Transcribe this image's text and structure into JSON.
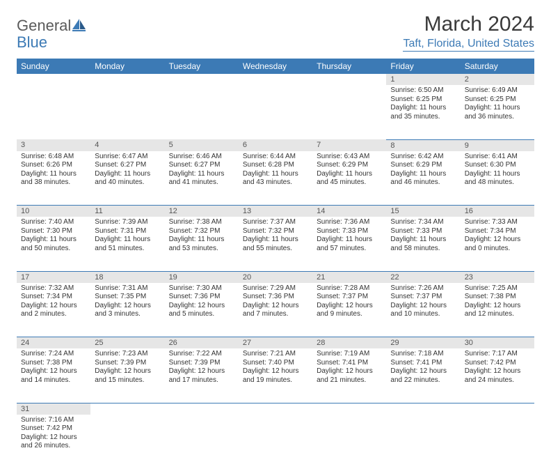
{
  "logo": {
    "text_general": "General",
    "text_blue": "Blue"
  },
  "title": "March 2024",
  "location": "Taft, Florida, United States",
  "day_headers": [
    "Sunday",
    "Monday",
    "Tuesday",
    "Wednesday",
    "Thursday",
    "Friday",
    "Saturday"
  ],
  "colors": {
    "header_bg": "#3c7ab5",
    "header_text": "#ffffff",
    "daynum_bg": "#e6e6e6",
    "border": "#3c7ab5",
    "link": "#3c7ab5"
  },
  "weeks": [
    [
      null,
      null,
      null,
      null,
      null,
      {
        "n": "1",
        "sr": "6:50 AM",
        "ss": "6:25 PM",
        "dl": "11 hours and 35 minutes."
      },
      {
        "n": "2",
        "sr": "6:49 AM",
        "ss": "6:25 PM",
        "dl": "11 hours and 36 minutes."
      }
    ],
    [
      {
        "n": "3",
        "sr": "6:48 AM",
        "ss": "6:26 PM",
        "dl": "11 hours and 38 minutes."
      },
      {
        "n": "4",
        "sr": "6:47 AM",
        "ss": "6:27 PM",
        "dl": "11 hours and 40 minutes."
      },
      {
        "n": "5",
        "sr": "6:46 AM",
        "ss": "6:27 PM",
        "dl": "11 hours and 41 minutes."
      },
      {
        "n": "6",
        "sr": "6:44 AM",
        "ss": "6:28 PM",
        "dl": "11 hours and 43 minutes."
      },
      {
        "n": "7",
        "sr": "6:43 AM",
        "ss": "6:29 PM",
        "dl": "11 hours and 45 minutes."
      },
      {
        "n": "8",
        "sr": "6:42 AM",
        "ss": "6:29 PM",
        "dl": "11 hours and 46 minutes."
      },
      {
        "n": "9",
        "sr": "6:41 AM",
        "ss": "6:30 PM",
        "dl": "11 hours and 48 minutes."
      }
    ],
    [
      {
        "n": "10",
        "sr": "7:40 AM",
        "ss": "7:30 PM",
        "dl": "11 hours and 50 minutes."
      },
      {
        "n": "11",
        "sr": "7:39 AM",
        "ss": "7:31 PM",
        "dl": "11 hours and 51 minutes."
      },
      {
        "n": "12",
        "sr": "7:38 AM",
        "ss": "7:32 PM",
        "dl": "11 hours and 53 minutes."
      },
      {
        "n": "13",
        "sr": "7:37 AM",
        "ss": "7:32 PM",
        "dl": "11 hours and 55 minutes."
      },
      {
        "n": "14",
        "sr": "7:36 AM",
        "ss": "7:33 PM",
        "dl": "11 hours and 57 minutes."
      },
      {
        "n": "15",
        "sr": "7:34 AM",
        "ss": "7:33 PM",
        "dl": "11 hours and 58 minutes."
      },
      {
        "n": "16",
        "sr": "7:33 AM",
        "ss": "7:34 PM",
        "dl": "12 hours and 0 minutes."
      }
    ],
    [
      {
        "n": "17",
        "sr": "7:32 AM",
        "ss": "7:34 PM",
        "dl": "12 hours and 2 minutes."
      },
      {
        "n": "18",
        "sr": "7:31 AM",
        "ss": "7:35 PM",
        "dl": "12 hours and 3 minutes."
      },
      {
        "n": "19",
        "sr": "7:30 AM",
        "ss": "7:36 PM",
        "dl": "12 hours and 5 minutes."
      },
      {
        "n": "20",
        "sr": "7:29 AM",
        "ss": "7:36 PM",
        "dl": "12 hours and 7 minutes."
      },
      {
        "n": "21",
        "sr": "7:28 AM",
        "ss": "7:37 PM",
        "dl": "12 hours and 9 minutes."
      },
      {
        "n": "22",
        "sr": "7:26 AM",
        "ss": "7:37 PM",
        "dl": "12 hours and 10 minutes."
      },
      {
        "n": "23",
        "sr": "7:25 AM",
        "ss": "7:38 PM",
        "dl": "12 hours and 12 minutes."
      }
    ],
    [
      {
        "n": "24",
        "sr": "7:24 AM",
        "ss": "7:38 PM",
        "dl": "12 hours and 14 minutes."
      },
      {
        "n": "25",
        "sr": "7:23 AM",
        "ss": "7:39 PM",
        "dl": "12 hours and 15 minutes."
      },
      {
        "n": "26",
        "sr": "7:22 AM",
        "ss": "7:39 PM",
        "dl": "12 hours and 17 minutes."
      },
      {
        "n": "27",
        "sr": "7:21 AM",
        "ss": "7:40 PM",
        "dl": "12 hours and 19 minutes."
      },
      {
        "n": "28",
        "sr": "7:19 AM",
        "ss": "7:41 PM",
        "dl": "12 hours and 21 minutes."
      },
      {
        "n": "29",
        "sr": "7:18 AM",
        "ss": "7:41 PM",
        "dl": "12 hours and 22 minutes."
      },
      {
        "n": "30",
        "sr": "7:17 AM",
        "ss": "7:42 PM",
        "dl": "12 hours and 24 minutes."
      }
    ],
    [
      {
        "n": "31",
        "sr": "7:16 AM",
        "ss": "7:42 PM",
        "dl": "12 hours and 26 minutes."
      },
      null,
      null,
      null,
      null,
      null,
      null
    ]
  ],
  "labels": {
    "sunrise": "Sunrise:",
    "sunset": "Sunset:",
    "daylight": "Daylight:"
  }
}
